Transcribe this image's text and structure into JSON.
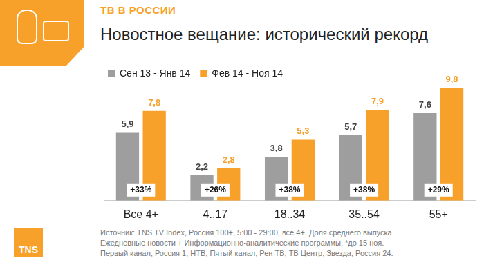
{
  "header": "ТВ В РОССИИ",
  "logo": "TNS",
  "source": [
    "Источник:  TNS TV Index, Россия 100+, 5:00 - 29:00, все 4+. Доля среднего выпуска.",
    "Ежедневные новости + Информационно-аналитические программы. *до 15 ноя.",
    "Первый канал, Россия 1, НТВ, Пятый канал, Рен ТВ, ТВ Центр, Звезда, Россия 24."
  ],
  "chart_data": {
    "type": "bar",
    "title": "Новостное вещание: исторический рекорд",
    "categories": [
      "Все 4+",
      "4..17",
      "18..34",
      "35..54",
      "55+"
    ],
    "series": [
      {
        "name": "Сен 13 - Янв 14",
        "color": "#9e9e9e",
        "values": [
          5.9,
          2.2,
          3.8,
          5.7,
          7.6
        ],
        "value_labels": [
          "5,9",
          "2,2",
          "3,8",
          "5,7",
          "7,6"
        ]
      },
      {
        "name": "Фев 14 - Ноя 14",
        "color": "#f7a12b",
        "values": [
          7.8,
          2.8,
          5.3,
          7.9,
          9.8
        ],
        "value_labels": [
          "7,8",
          "2,8",
          "5,3",
          "7,9",
          "9,8"
        ]
      }
    ],
    "annotations": [
      "+33%",
      "+26%",
      "+38%",
      "+38%",
      "+29%"
    ],
    "ylim": [
      0,
      10
    ],
    "grid": false,
    "legend": "top-left",
    "data_labels": true,
    "tick_labels": "x"
  }
}
